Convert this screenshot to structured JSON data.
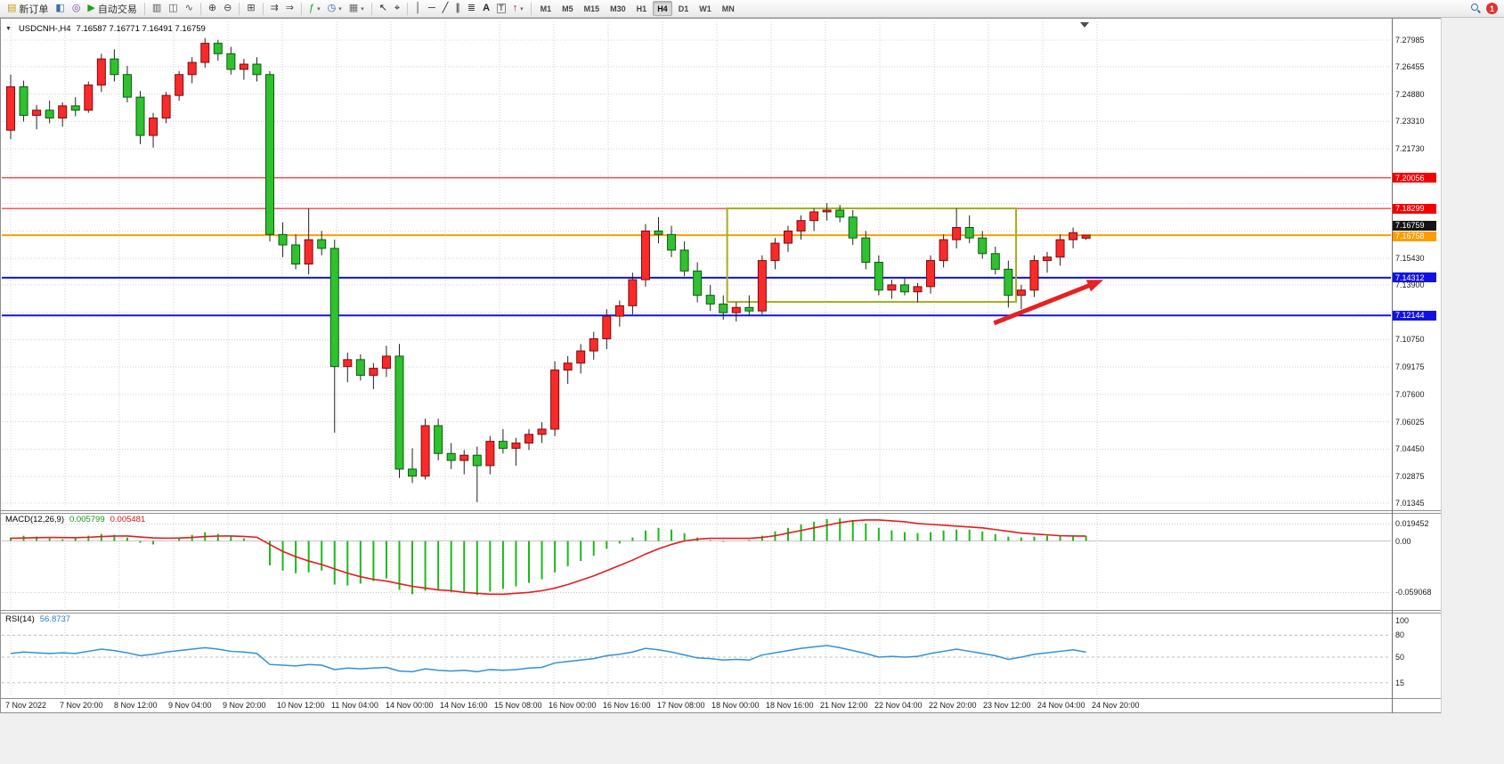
{
  "toolbar": {
    "new_order_label": "新订单",
    "autotrading_label": "自动交易",
    "timeframes": [
      "M1",
      "M5",
      "M15",
      "M30",
      "H1",
      "H4",
      "D1",
      "W1",
      "MN"
    ],
    "alert_count": "1"
  },
  "icons": {
    "symbol_marker": "▼",
    "dropdown": "▾",
    "new_order": "▤",
    "market_watch": "◧",
    "navigator": "◎",
    "autotrading": "▶",
    "bar_chart": "▥",
    "candle_chart": "◫",
    "line_chart": "∿",
    "zoom_in": "⊕",
    "zoom_out": "⊖",
    "tile_windows": "⊞",
    "auto_scroll": "⇉",
    "chart_shift": "⇒",
    "indicators": "ƒ",
    "periods": "◷",
    "templates": "▦",
    "cursor": "↖",
    "crosshair": "⌖",
    "vertical_line": "│",
    "horizontal_line": "─",
    "trendline": "╱",
    "channel": "∥",
    "fibonacci": "≣",
    "text": "A",
    "text_label": "T",
    "arrow_tool": "↑"
  },
  "window": {
    "symbol_header": "USDCNH-,H4",
    "ohlc_header": "7.16587 7.16771 7.16491 7.16759"
  },
  "chart_data": {
    "type": "candlestick",
    "symbol": "USDCNH-",
    "timeframe": "H4",
    "ohlc_current": {
      "open": 7.16587,
      "high": 7.16771,
      "low": 7.16491,
      "close": 7.16759
    },
    "style": {
      "bull": "#fb2a2a",
      "bull_stroke": "#7a0b0b",
      "bear": "#2fc12f",
      "bear_stroke": "#0a5c0a",
      "wick": "#222222"
    },
    "candles": [
      [
        7.228,
        7.26,
        7.223,
        7.253
      ],
      [
        7.253,
        7.2565,
        7.233,
        7.2365
      ],
      [
        7.2365,
        7.2425,
        7.2285,
        7.2395
      ],
      [
        7.2395,
        7.245,
        7.232,
        7.235
      ],
      [
        7.235,
        7.244,
        7.23,
        7.242
      ],
      [
        7.242,
        7.247,
        7.236,
        7.2395
      ],
      [
        7.2395,
        7.256,
        7.238,
        7.254
      ],
      [
        7.254,
        7.272,
        7.25,
        7.269
      ],
      [
        7.269,
        7.2745,
        7.256,
        7.26
      ],
      [
        7.26,
        7.265,
        7.244,
        7.247
      ],
      [
        7.247,
        7.2505,
        7.22,
        7.225
      ],
      [
        7.225,
        7.238,
        7.218,
        7.235
      ],
      [
        7.235,
        7.25,
        7.232,
        7.248
      ],
      [
        7.248,
        7.262,
        7.245,
        7.26
      ],
      [
        7.26,
        7.27,
        7.255,
        7.267
      ],
      [
        7.267,
        7.281,
        7.264,
        7.278
      ],
      [
        7.278,
        7.28,
        7.268,
        7.272
      ],
      [
        7.272,
        7.276,
        7.26,
        7.263
      ],
      [
        7.263,
        7.269,
        7.257,
        7.266
      ],
      [
        7.266,
        7.27,
        7.256,
        7.26
      ],
      [
        7.26,
        7.262,
        7.164,
        7.168
      ],
      [
        7.168,
        7.175,
        7.155,
        7.162
      ],
      [
        7.162,
        7.168,
        7.148,
        7.151
      ],
      [
        7.151,
        7.183,
        7.145,
        7.165
      ],
      [
        7.165,
        7.17,
        7.156,
        7.16
      ],
      [
        7.16,
        7.165,
        7.054,
        7.092
      ],
      [
        7.092,
        7.1,
        7.083,
        7.096
      ],
      [
        7.096,
        7.099,
        7.084,
        7.087
      ],
      [
        7.087,
        7.094,
        7.079,
        7.091
      ],
      [
        7.091,
        7.104,
        7.086,
        7.098
      ],
      [
        7.098,
        7.105,
        7.028,
        7.033
      ],
      [
        7.033,
        7.045,
        7.025,
        7.029
      ],
      [
        7.029,
        7.062,
        7.027,
        7.058
      ],
      [
        7.058,
        7.062,
        7.038,
        7.042
      ],
      [
        7.042,
        7.048,
        7.033,
        7.038
      ],
      [
        7.038,
        7.044,
        7.03,
        7.041
      ],
      [
        7.041,
        7.046,
        7.014,
        7.035
      ],
      [
        7.035,
        7.052,
        7.03,
        7.049
      ],
      [
        7.049,
        7.056,
        7.042,
        7.045
      ],
      [
        7.045,
        7.051,
        7.035,
        7.048
      ],
      [
        7.048,
        7.056,
        7.044,
        7.053
      ],
      [
        7.053,
        7.06,
        7.048,
        7.056
      ],
      [
        7.056,
        7.095,
        7.052,
        7.09
      ],
      [
        7.09,
        7.098,
        7.082,
        7.094
      ],
      [
        7.094,
        7.105,
        7.088,
        7.101
      ],
      [
        7.101,
        7.112,
        7.096,
        7.108
      ],
      [
        7.108,
        7.125,
        7.102,
        7.121
      ],
      [
        7.121,
        7.13,
        7.115,
        7.127
      ],
      [
        7.127,
        7.146,
        7.122,
        7.142
      ],
      [
        7.142,
        7.174,
        7.138,
        7.17
      ],
      [
        7.17,
        7.178,
        7.163,
        7.168
      ],
      [
        7.168,
        7.173,
        7.155,
        7.159
      ],
      [
        7.159,
        7.164,
        7.144,
        7.147
      ],
      [
        7.147,
        7.152,
        7.129,
        7.133
      ],
      [
        7.133,
        7.139,
        7.124,
        7.128
      ],
      [
        7.128,
        7.133,
        7.119,
        7.123
      ],
      [
        7.123,
        7.129,
        7.118,
        7.126
      ],
      [
        7.126,
        7.133,
        7.121,
        7.124
      ],
      [
        7.124,
        7.156,
        7.122,
        7.153
      ],
      [
        7.153,
        7.166,
        7.148,
        7.163
      ],
      [
        7.163,
        7.173,
        7.158,
        7.17
      ],
      [
        7.17,
        7.179,
        7.165,
        7.176
      ],
      [
        7.176,
        7.183,
        7.17,
        7.181
      ],
      [
        7.181,
        7.186,
        7.176,
        7.182
      ],
      [
        7.182,
        7.185,
        7.175,
        7.178
      ],
      [
        7.178,
        7.182,
        7.162,
        7.166
      ],
      [
        7.166,
        7.17,
        7.148,
        7.152
      ],
      [
        7.152,
        7.156,
        7.133,
        7.136
      ],
      [
        7.136,
        7.142,
        7.131,
        7.139
      ],
      [
        7.139,
        7.143,
        7.133,
        7.135
      ],
      [
        7.135,
        7.14,
        7.129,
        7.138
      ],
      [
        7.138,
        7.156,
        7.134,
        7.153
      ],
      [
        7.153,
        7.168,
        7.149,
        7.165
      ],
      [
        7.165,
        7.183,
        7.16,
        7.172
      ],
      [
        7.172,
        7.179,
        7.163,
        7.166
      ],
      [
        7.166,
        7.17,
        7.154,
        7.157
      ],
      [
        7.157,
        7.161,
        7.145,
        7.148
      ],
      [
        7.148,
        7.153,
        7.126,
        7.133
      ],
      [
        7.133,
        7.139,
        7.125,
        7.136
      ],
      [
        7.136,
        7.156,
        7.132,
        7.153
      ],
      [
        7.153,
        7.158,
        7.146,
        7.155
      ],
      [
        7.155,
        7.168,
        7.15,
        7.165
      ],
      [
        7.165,
        7.172,
        7.16,
        7.169
      ],
      [
        7.16587,
        7.16771,
        7.16491,
        7.16759
      ]
    ],
    "y_axis": {
      "labels": [
        "7.27985",
        "7.26455",
        "7.24880",
        "7.23310",
        "7.21730",
        "7.15430",
        "7.13900",
        "7.10750",
        "7.09175",
        "7.07600",
        "7.06025",
        "7.04450",
        "7.02875",
        "7.01345"
      ],
      "values": [
        7.27985,
        7.26455,
        7.2488,
        7.2331,
        7.2173,
        7.1543,
        7.139,
        7.1075,
        7.09175,
        7.076,
        7.06025,
        7.0445,
        7.02875,
        7.01345
      ],
      "gridline_prices": [
        7.27985,
        7.26455,
        7.2488,
        7.2331,
        7.2173,
        7.20155,
        7.1858,
        7.17005,
        7.1543,
        7.139,
        7.12325,
        7.1075,
        7.09175,
        7.076,
        7.06025,
        7.0445,
        7.02875,
        7.01345
      ]
    },
    "x_labels": [
      "7 Nov 2022",
      "7 Nov 20:00",
      "8 Nov 12:00",
      "9 Nov 04:00",
      "9 Nov 20:00",
      "10 Nov 12:00",
      "11 Nov 04:00",
      "14 Nov 00:00",
      "14 Nov 16:00",
      "15 Nov 08:00",
      "16 Nov 00:00",
      "16 Nov 16:00",
      "17 Nov 08:00",
      "18 Nov 00:00",
      "18 Nov 16:00",
      "21 Nov 12:00",
      "22 Nov 04:00",
      "22 Nov 20:00",
      "23 Nov 12:00",
      "24 Nov 04:00",
      "24 Nov 20:00"
    ],
    "price_lines": [
      {
        "price": 7.20056,
        "label": "7.20056",
        "color": "#f40000",
        "width": 1
      },
      {
        "price": 7.18299,
        "label": "7.18299",
        "color": "#f40000",
        "width": 1
      },
      {
        "price": 7.16758,
        "label": "7.16758",
        "color": "#ff9c00",
        "width": 2,
        "label_dy": 1
      },
      {
        "price": 7.14312,
        "label": "7.14312",
        "color": "#1212e0",
        "width": 2
      },
      {
        "price": 7.12144,
        "label": "7.12144",
        "color": "#1212e0",
        "width": 2
      }
    ],
    "current_price": {
      "price": 7.16759,
      "label": "7.16759",
      "color": "#141414"
    },
    "rect_annotation": {
      "bar_start": 55.3,
      "bar_end": 77.6,
      "price_top": 7.183,
      "price_bottom": 7.1292,
      "color": "#a6ac1e"
    },
    "arrow": {
      "bar_start": 75.9,
      "price_start": 7.117,
      "bar_end": 83.7,
      "price_end": 7.14,
      "color": "#e42222"
    },
    "macd": {
      "title": "MACD(12,26,9)",
      "main_value": "0.005799",
      "signal_value": "0.005481",
      "hist_color": "#19bb19",
      "signal_color": "#e51c1c",
      "axis": [
        {
          "v": 0.019452,
          "label": "0.019452"
        },
        {
          "v": 0,
          "label": "0.00"
        },
        {
          "v": -0.059068,
          "label": "-0.059068"
        }
      ],
      "hist": [
        0.004,
        0.006,
        0.005,
        0.003,
        0.002,
        0.003,
        0.006,
        0.008,
        0.007,
        0.004,
        -0.002,
        -0.004,
        0.0,
        0.004,
        0.007,
        0.01,
        0.008,
        0.005,
        0.003,
        0.0,
        -0.028,
        -0.034,
        -0.037,
        -0.036,
        -0.034,
        -0.05,
        -0.051,
        -0.049,
        -0.046,
        -0.043,
        -0.056,
        -0.061,
        -0.057,
        -0.057,
        -0.059,
        -0.058,
        -0.062,
        -0.058,
        -0.055,
        -0.052,
        -0.048,
        -0.044,
        -0.036,
        -0.029,
        -0.023,
        -0.017,
        -0.009,
        -0.003,
        0.004,
        0.012,
        0.015,
        0.013,
        0.009,
        0.004,
        0.001,
        -0.001,
        0.0,
        0.001,
        0.006,
        0.011,
        0.015,
        0.019,
        0.022,
        0.025,
        0.026,
        0.024,
        0.02,
        0.015,
        0.012,
        0.01,
        0.009,
        0.01,
        0.012,
        0.013,
        0.013,
        0.011,
        0.008,
        0.005,
        0.004,
        0.005,
        0.006,
        0.006,
        0.006,
        0.0058
      ],
      "signal": [
        0.003,
        0.0034,
        0.0038,
        0.004,
        0.0039,
        0.0038,
        0.0042,
        0.005,
        0.0056,
        0.0057,
        0.0045,
        0.0035,
        0.0032,
        0.0034,
        0.004,
        0.005,
        0.0056,
        0.0057,
        0.0052,
        0.0042,
        -0.004,
        -0.012,
        -0.018,
        -0.023,
        -0.027,
        -0.032,
        -0.037,
        -0.041,
        -0.044,
        -0.046,
        -0.049,
        -0.052,
        -0.054,
        -0.056,
        -0.057,
        -0.059,
        -0.06,
        -0.061,
        -0.061,
        -0.06,
        -0.059,
        -0.057,
        -0.054,
        -0.05,
        -0.045,
        -0.04,
        -0.034,
        -0.028,
        -0.022,
        -0.015,
        -0.009,
        -0.004,
        0.0,
        0.002,
        0.003,
        0.003,
        0.003,
        0.003,
        0.004,
        0.006,
        0.009,
        0.012,
        0.015,
        0.018,
        0.021,
        0.023,
        0.024,
        0.024,
        0.023,
        0.022,
        0.02,
        0.019,
        0.018,
        0.017,
        0.016,
        0.015,
        0.013,
        0.011,
        0.009,
        0.008,
        0.007,
        0.006,
        0.0057,
        0.0055
      ]
    },
    "rsi": {
      "title": "RSI(14)",
      "value": "56.8737",
      "color": "#3390d6",
      "levels": [
        {
          "v": 100,
          "label": "100",
          "line": false
        },
        {
          "v": 80,
          "label": "80",
          "line": true
        },
        {
          "v": 50,
          "label": "50",
          "line": true
        },
        {
          "v": 15,
          "label": "15",
          "line": true
        }
      ],
      "series": [
        55,
        57,
        56,
        55,
        56,
        55,
        58,
        61,
        59,
        56,
        52,
        54,
        57,
        59,
        61,
        63,
        61,
        58,
        57,
        55,
        40,
        39,
        38,
        40,
        39,
        33,
        35,
        34,
        35,
        36,
        31,
        30,
        34,
        32,
        31,
        32,
        30,
        33,
        32,
        33,
        35,
        36,
        42,
        44,
        46,
        48,
        52,
        54,
        57,
        62,
        60,
        57,
        53,
        49,
        48,
        46,
        47,
        46,
        53,
        56,
        59,
        62,
        64,
        66,
        63,
        59,
        55,
        50,
        51,
        50,
        51,
        55,
        58,
        61,
        58,
        55,
        52,
        47,
        50,
        54,
        56,
        58,
        60,
        56.87
      ]
    }
  }
}
